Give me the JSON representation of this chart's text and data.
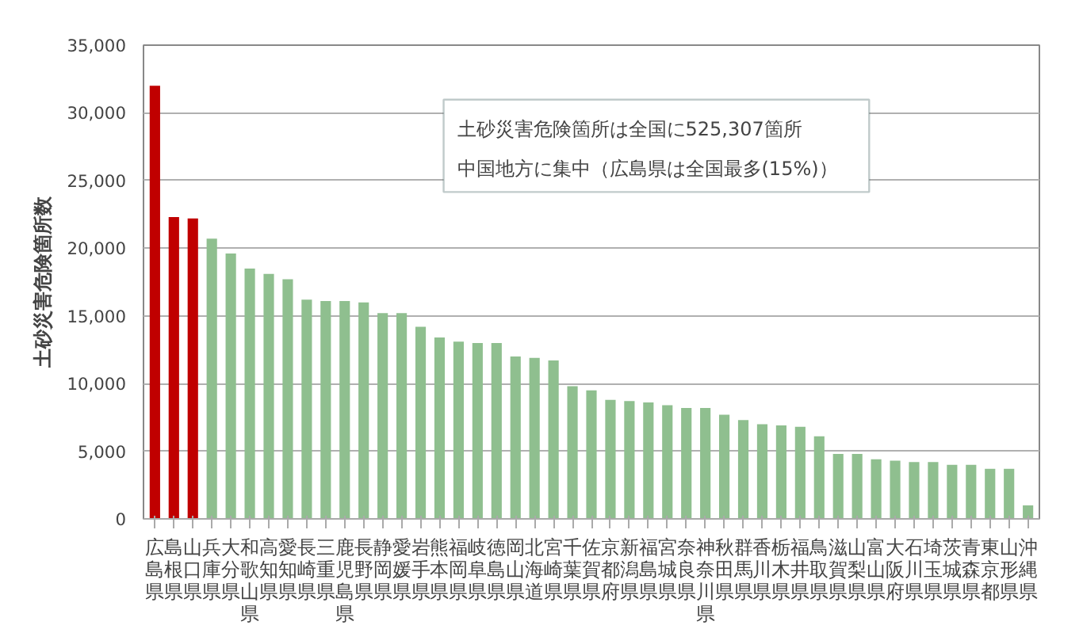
{
  "chart_data": {
    "type": "bar",
    "ylabel": "土砂災害危険箇所数",
    "categories": [
      "広島県",
      "島根県",
      "山口県",
      "兵庫県",
      "大分県",
      "和歌山県",
      "高知県",
      "愛知県",
      "長崎県",
      "三重県",
      "鹿児島県",
      "長野県",
      "静岡県",
      "愛媛県",
      "岩手県",
      "熊本県",
      "福岡県",
      "岐阜県",
      "徳島県",
      "岡山県",
      "北海道",
      "宮崎県",
      "千葉県",
      "佐賀県",
      "京都府",
      "新潟県",
      "福島県",
      "宮城県",
      "奈良県",
      "神奈川県",
      "秋田県",
      "群馬県",
      "香川県",
      "栃木県",
      "福井県",
      "鳥取県",
      "滋賀県",
      "山梨県",
      "富山県",
      "大阪府",
      "石川県",
      "埼玉県",
      "茨城県",
      "青森県",
      "東京都",
      "山形県",
      "沖縄県"
    ],
    "values": [
      32000,
      22300,
      22200,
      20700,
      19600,
      18500,
      18100,
      17700,
      16200,
      16100,
      16100,
      16000,
      15200,
      15200,
      14200,
      13400,
      13100,
      13000,
      13000,
      12000,
      11900,
      11700,
      9800,
      9500,
      8800,
      8700,
      8600,
      8400,
      8200,
      8200,
      7700,
      7300,
      7000,
      6900,
      6800,
      6100,
      4800,
      4800,
      4400,
      4300,
      4200,
      4200,
      4000,
      4000,
      3700,
      3700,
      1000
    ],
    "colors": [
      "#c00000",
      "#c00000",
      "#c00000",
      "#8fbf8f",
      "#8fbf8f",
      "#8fbf8f",
      "#8fbf8f",
      "#8fbf8f",
      "#8fbf8f",
      "#8fbf8f",
      "#8fbf8f",
      "#8fbf8f",
      "#8fbf8f",
      "#8fbf8f",
      "#8fbf8f",
      "#8fbf8f",
      "#8fbf8f",
      "#8fbf8f",
      "#8fbf8f",
      "#8fbf8f",
      "#8fbf8f",
      "#8fbf8f",
      "#8fbf8f",
      "#8fbf8f",
      "#8fbf8f",
      "#8fbf8f",
      "#8fbf8f",
      "#8fbf8f",
      "#8fbf8f",
      "#8fbf8f",
      "#8fbf8f",
      "#8fbf8f",
      "#8fbf8f",
      "#8fbf8f",
      "#8fbf8f",
      "#8fbf8f",
      "#8fbf8f",
      "#8fbf8f",
      "#8fbf8f",
      "#8fbf8f",
      "#8fbf8f",
      "#8fbf8f",
      "#8fbf8f",
      "#8fbf8f",
      "#8fbf8f",
      "#8fbf8f",
      "#8fbf8f"
    ],
    "ylim": [
      0,
      35000
    ],
    "yticks": [
      0,
      {
        "value": 5000,
        "label": "5,000"
      },
      {
        "value": 10000,
        "label": "10,000"
      },
      {
        "value": 15000,
        "label": "15,000"
      },
      {
        "value": 20000,
        "label": "20,000"
      },
      {
        "value": 25000,
        "label": "25,000"
      },
      {
        "value": 30000,
        "label": "30,000"
      },
      {
        "value": 35000,
        "label": "35,000"
      }
    ],
    "grid": "y",
    "annotations": [
      "土砂災害危険箇所は全国に525,307箇所",
      "中国地方に集中（広島県は全国最多(15%)）"
    ]
  }
}
